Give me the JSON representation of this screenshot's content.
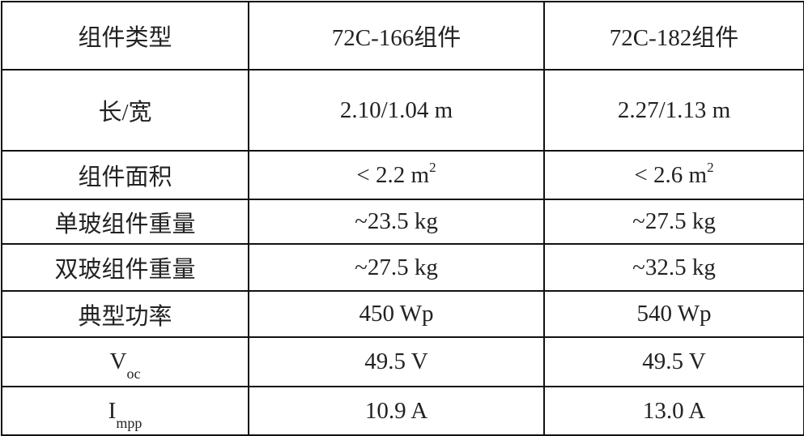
{
  "headers": [
    "组件类型",
    "72C-166组件",
    "72C-182组件"
  ],
  "rows": [
    {
      "label": "长/宽",
      "label_sub": "",
      "values": [
        "2.10/1.04 m",
        "2.27/1.13 m"
      ],
      "sup": [
        "",
        ""
      ]
    },
    {
      "label": "组件面积",
      "label_sub": "",
      "values": [
        "< 2.2 m",
        "< 2.6 m"
      ],
      "sup": [
        "2",
        "2"
      ]
    },
    {
      "label": "单玻组件重量",
      "label_sub": "",
      "values": [
        "~23.5 kg",
        "~27.5 kg"
      ],
      "sup": [
        "",
        ""
      ]
    },
    {
      "label": "双玻组件重量",
      "label_sub": "",
      "values": [
        "~27.5 kg",
        "~32.5 kg"
      ],
      "sup": [
        "",
        ""
      ]
    },
    {
      "label": "典型功率",
      "label_sub": "",
      "values": [
        "450 Wp",
        "540 Wp"
      ],
      "sup": [
        "",
        ""
      ]
    },
    {
      "label": "V",
      "label_sub": "oc",
      "values": [
        "49.5 V",
        "49.5 V"
      ],
      "sup": [
        "",
        ""
      ]
    },
    {
      "label": "I",
      "label_sub": "mpp",
      "values": [
        "10.9 A",
        "13.0 A"
      ],
      "sup": [
        "",
        ""
      ]
    }
  ]
}
